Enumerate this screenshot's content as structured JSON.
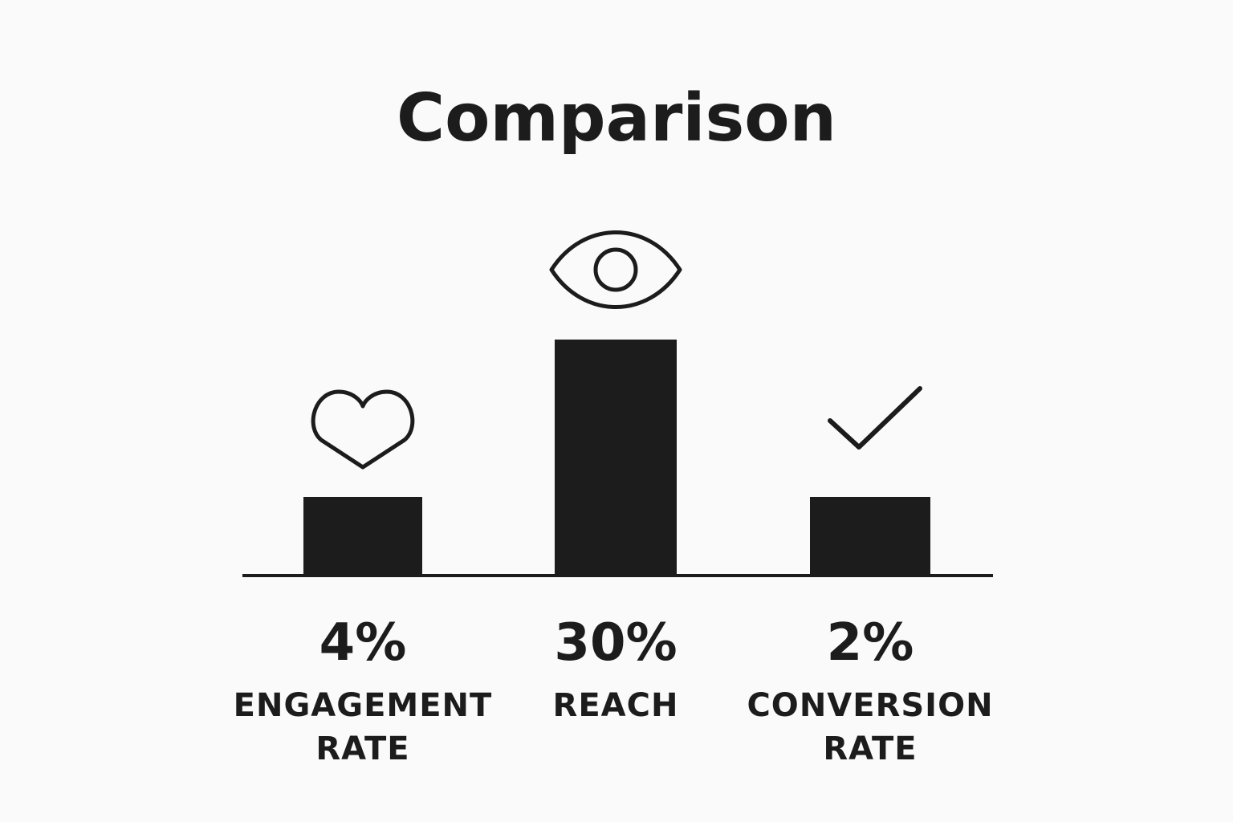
{
  "chart_data": {
    "type": "bar",
    "title": "Comparison",
    "categories": [
      "ENGAGEMENT RATE",
      "REACH",
      "CONVERSION RATE"
    ],
    "category_lines": [
      [
        "ENGAGEMENT",
        "RATE"
      ],
      [
        "REACH"
      ],
      [
        "CONVERSION",
        "RATE"
      ]
    ],
    "values": [
      4,
      30,
      2
    ],
    "value_labels": [
      "4%",
      "30%",
      "2%"
    ],
    "icons": [
      "heart-icon",
      "eye-icon",
      "checkmark-icon"
    ],
    "unit": "%",
    "grid": false,
    "legend": "none",
    "colors": {
      "bar": "#1c1c1c",
      "text": "#1c1c1c",
      "background": "#fafafa"
    }
  }
}
